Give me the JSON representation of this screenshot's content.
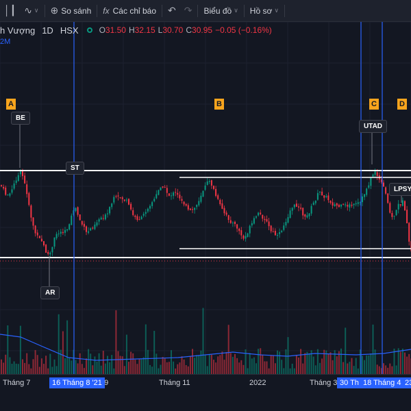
{
  "toolbar": {
    "compare_label": "So sánh",
    "indicators_label": "Các chỉ báo",
    "chart_label": "Biểu đồ",
    "profile_label": "Hồ sơ",
    "indicators_icon_glyph": "fx"
  },
  "legend": {
    "symbol": "h Vượng",
    "interval": "1D",
    "exchange": "HSX",
    "open_key": "O",
    "open": "31.50",
    "high_key": "H",
    "high": "32.15",
    "low_key": "L",
    "low": "30.70",
    "close_key": "C",
    "close": "30.95",
    "change": "−0.05 (−0.16%)",
    "volume_fragment": "2M"
  },
  "xaxis": {
    "labels": [
      "Tháng 7",
      "g 9",
      "Tháng 11",
      "2022",
      "Tháng 3"
    ],
    "highlighted": [
      "16 Tháng 8 '21",
      "30 Th",
      "18 Tháng 4 '2",
      "23"
    ]
  },
  "annotations": {
    "letters": [
      "A",
      "B",
      "C",
      "D"
    ],
    "tags": [
      "BE",
      "ST",
      "AR",
      "UTAD",
      "LPSY"
    ]
  },
  "colors": {
    "background": "#131722",
    "up": "#089981",
    "down": "#f23645",
    "accent": "#2962ff",
    "marker": "#f7a41d"
  },
  "chart_data": {
    "type": "candlestick",
    "series": [
      {
        "name": "price",
        "close_range": [
          30.7,
          32.15
        ]
      },
      {
        "name": "volume"
      }
    ]
  }
}
